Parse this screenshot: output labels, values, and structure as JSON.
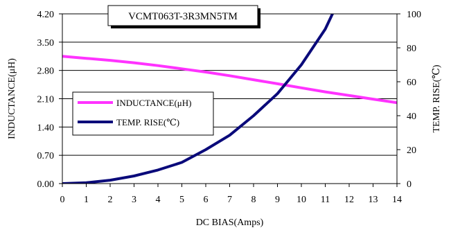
{
  "chart_data": {
    "type": "line",
    "title": "VCMT063T-3R3MN5TM",
    "xlabel": "DC BIAS(Amps)",
    "ylabel_left": "INDUCTANCE(μH)",
    "ylabel_right": "TEMP. RISE(℃)",
    "x_ticks": [
      "0",
      "1",
      "2",
      "3",
      "4",
      "5",
      "6",
      "7",
      "8",
      "9",
      "10",
      "11",
      "12",
      "13",
      "14"
    ],
    "y_left_ticks": [
      "0.00",
      "0.70",
      "1.40",
      "2.10",
      "2.80",
      "3.50",
      "4.20"
    ],
    "y_right_ticks": [
      "0",
      "20",
      "40",
      "60",
      "80",
      "100"
    ],
    "xlim": [
      0,
      14
    ],
    "ylim_left": [
      0,
      4.2
    ],
    "ylim_right": [
      0,
      100
    ],
    "grid": "horizontal",
    "legend_position": "middle-left",
    "series": [
      {
        "name": "INDUCTANCE(μH)",
        "axis": "left",
        "color": "#ff33ff",
        "x": [
          0,
          1,
          2,
          3,
          4,
          5,
          6,
          7,
          8,
          9,
          10,
          11,
          12,
          13,
          14
        ],
        "y": [
          3.15,
          3.1,
          3.05,
          2.99,
          2.92,
          2.84,
          2.76,
          2.67,
          2.57,
          2.47,
          2.37,
          2.27,
          2.18,
          2.09,
          2.0
        ]
      },
      {
        "name": "TEMP. RISE(℃)",
        "axis": "right",
        "color": "#0a0a7a",
        "x": [
          0,
          1,
          2,
          3,
          4,
          5,
          6,
          7,
          8,
          9,
          10,
          11,
          11.3
        ],
        "y": [
          0,
          0.5,
          2,
          4.5,
          8,
          12.5,
          20,
          28.5,
          40,
          53,
          70,
          91,
          100
        ]
      }
    ]
  }
}
